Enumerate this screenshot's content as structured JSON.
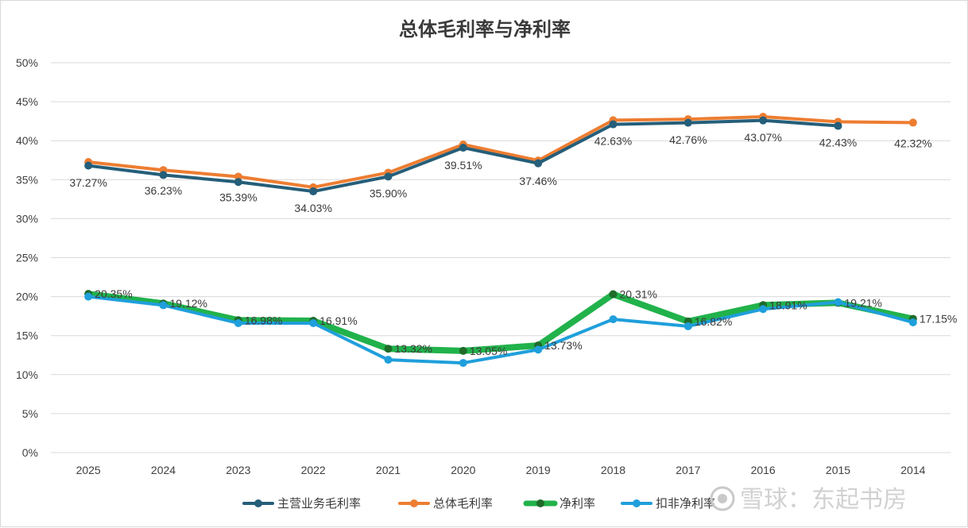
{
  "chart_data": {
    "type": "line",
    "title": "总体毛利率与净利率",
    "categories": [
      "2025",
      "2024",
      "2023",
      "2022",
      "2021",
      "2020",
      "2019",
      "2018",
      "2017",
      "2016",
      "2015",
      "2014"
    ],
    "yticks": [
      "0%",
      "5%",
      "10%",
      "15%",
      "20%",
      "25%",
      "30%",
      "35%",
      "40%",
      "45%",
      "50%"
    ],
    "ylim": [
      0,
      50
    ],
    "grid": true,
    "legend_position": "bottom",
    "series": [
      {
        "name": "主营业务毛利率",
        "color": "#255e79",
        "values": [
          36.8,
          35.6,
          34.7,
          33.5,
          35.4,
          39.1,
          37.1,
          42.1,
          42.3,
          42.6,
          41.9,
          null
        ]
      },
      {
        "name": "总体毛利率",
        "color": "#ed7d31",
        "values": [
          37.27,
          36.23,
          35.39,
          34.03,
          35.9,
          39.51,
          37.46,
          42.63,
          42.76,
          43.07,
          42.43,
          42.32
        ],
        "labels": [
          "37.27%",
          "36.23%",
          "35.39%",
          "34.03%",
          "35.90%",
          "39.51%",
          "37.46%",
          "42.63%",
          "42.76%",
          "43.07%",
          "42.43%",
          "42.32%"
        ]
      },
      {
        "name": "净利率",
        "color": "#21b24b",
        "marker_color": "#1e6b2a",
        "values": [
          20.35,
          19.12,
          16.98,
          16.91,
          13.32,
          13.05,
          13.73,
          20.31,
          16.82,
          18.91,
          19.21,
          17.15
        ],
        "labels": [
          "20.35%",
          "19.12%",
          "16.98%",
          "16.91%",
          "13.32%",
          "13.05%",
          "13.73%",
          "20.31%",
          "16.82%",
          "18.91%",
          "19.21%",
          "17.15%"
        ]
      },
      {
        "name": "扣非净利率",
        "color": "#1f9fdb",
        "values": [
          20.0,
          18.9,
          16.6,
          16.6,
          11.9,
          11.5,
          13.2,
          17.1,
          16.2,
          18.4,
          19.3,
          16.7
        ]
      }
    ]
  },
  "watermark": {
    "text": "雪球：东起书房"
  }
}
